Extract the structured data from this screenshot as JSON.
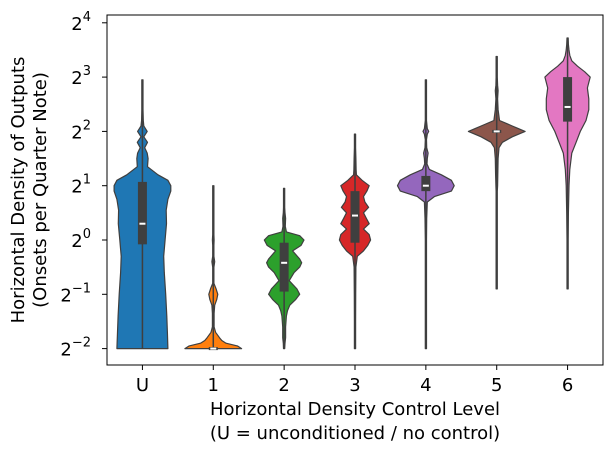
{
  "chart_data": {
    "type": "violin",
    "title": "",
    "xlabel_line1": "Horizontal Density Control Level",
    "xlabel_line2": "(U = unconditioned / no control)",
    "ylabel_line1": "Horizontal Density of Outputs",
    "ylabel_line2": "(Onsets per Quarter Note)",
    "yscale": "log2",
    "ylim_log2": [
      -2.3,
      4.2
    ],
    "y_ticks": [
      {
        "base": "2",
        "exp": "4",
        "log2": 4
      },
      {
        "base": "2",
        "exp": "3",
        "log2": 3
      },
      {
        "base": "2",
        "exp": "2",
        "log2": 2
      },
      {
        "base": "2",
        "exp": "1",
        "log2": 1
      },
      {
        "base": "2",
        "exp": "0",
        "log2": 0
      },
      {
        "base": "2",
        "exp": "−1",
        "log2": -1
      },
      {
        "base": "2",
        "exp": "−2",
        "log2": -2
      }
    ],
    "categories": [
      "U",
      "1",
      "2",
      "3",
      "4",
      "5",
      "6"
    ],
    "violins": [
      {
        "label": "U",
        "color": "#1f77b4",
        "median": 0.3,
        "q1": -0.08,
        "q3": 1.07,
        "wlo": -2.0,
        "whi": 2.95,
        "profile": [
          [
            -2.0,
            0.9
          ],
          [
            -1.7,
            0.88
          ],
          [
            -1.4,
            0.86
          ],
          [
            -1.0,
            0.82
          ],
          [
            -0.6,
            0.77
          ],
          [
            -0.3,
            0.75
          ],
          [
            0.0,
            0.8
          ],
          [
            0.3,
            0.85
          ],
          [
            0.55,
            0.84
          ],
          [
            0.75,
            0.9
          ],
          [
            0.9,
            1.0
          ],
          [
            1.0,
            1.0
          ],
          [
            1.1,
            0.9
          ],
          [
            1.2,
            0.55
          ],
          [
            1.35,
            0.18
          ],
          [
            1.5,
            0.2
          ],
          [
            1.6,
            0.17
          ],
          [
            1.7,
            0.08
          ],
          [
            1.8,
            0.18
          ],
          [
            1.9,
            0.05
          ],
          [
            2.0,
            0.17
          ],
          [
            2.1,
            0.05
          ],
          [
            2.2,
            0.03
          ],
          [
            2.4,
            0.02
          ],
          [
            2.7,
            0.01
          ],
          [
            2.95,
            0.005
          ]
        ]
      },
      {
        "label": "1",
        "color": "#ff7f0e",
        "median": -2.0,
        "q1": -2.0,
        "q3": -2.0,
        "wlo": -2.0,
        "whi": 1.0,
        "profile": [
          [
            -2.0,
            1.0
          ],
          [
            -1.95,
            0.85
          ],
          [
            -1.9,
            0.45
          ],
          [
            -1.85,
            0.3
          ],
          [
            -1.8,
            0.22
          ],
          [
            -1.7,
            0.08
          ],
          [
            -1.6,
            0.03
          ],
          [
            -1.5,
            0.03
          ],
          [
            -1.35,
            0.03
          ],
          [
            -1.2,
            0.05
          ],
          [
            -1.1,
            0.12
          ],
          [
            -1.0,
            0.16
          ],
          [
            -0.9,
            0.1
          ],
          [
            -0.8,
            0.02
          ],
          [
            -0.6,
            0.02
          ],
          [
            -0.5,
            0.02
          ],
          [
            -0.4,
            0.05
          ],
          [
            -0.3,
            0.02
          ],
          [
            -0.1,
            0.02
          ],
          [
            0.0,
            0.03
          ],
          [
            0.1,
            0.015
          ],
          [
            0.5,
            0.01
          ],
          [
            1.0,
            0.005
          ]
        ]
      },
      {
        "label": "2",
        "color": "#2ca02c",
        "median": -0.42,
        "q1": -0.95,
        "q3": -0.05,
        "wlo": -2.0,
        "whi": 0.95,
        "profile": [
          [
            -2.0,
            0.01
          ],
          [
            -1.9,
            0.03
          ],
          [
            -1.8,
            0.05
          ],
          [
            -1.6,
            0.05
          ],
          [
            -1.4,
            0.08
          ],
          [
            -1.3,
            0.12
          ],
          [
            -1.2,
            0.2
          ],
          [
            -1.1,
            0.4
          ],
          [
            -1.0,
            0.55
          ],
          [
            -0.9,
            0.45
          ],
          [
            -0.75,
            0.18
          ],
          [
            -0.6,
            0.35
          ],
          [
            -0.5,
            0.55
          ],
          [
            -0.42,
            0.62
          ],
          [
            -0.35,
            0.55
          ],
          [
            -0.2,
            0.3
          ],
          [
            -0.1,
            0.6
          ],
          [
            0.0,
            0.7
          ],
          [
            0.08,
            0.55
          ],
          [
            0.15,
            0.08
          ],
          [
            0.25,
            0.04
          ],
          [
            0.4,
            0.05
          ],
          [
            0.5,
            0.03
          ],
          [
            0.6,
            0.02
          ],
          [
            0.7,
            0.015
          ],
          [
            0.85,
            0.01
          ],
          [
            0.95,
            0.005
          ]
        ]
      },
      {
        "label": "3",
        "color": "#d62728",
        "median": 0.45,
        "q1": -0.05,
        "q3": 0.9,
        "wlo": -2.0,
        "whi": 1.95,
        "profile": [
          [
            -2.0,
            0.01
          ],
          [
            -1.5,
            0.02
          ],
          [
            -1.0,
            0.025
          ],
          [
            -0.5,
            0.03
          ],
          [
            -0.3,
            0.08
          ],
          [
            -0.2,
            0.3
          ],
          [
            -0.1,
            0.45
          ],
          [
            0.0,
            0.55
          ],
          [
            0.1,
            0.5
          ],
          [
            0.2,
            0.3
          ],
          [
            0.3,
            0.5
          ],
          [
            0.4,
            0.4
          ],
          [
            0.5,
            0.3
          ],
          [
            0.6,
            0.48
          ],
          [
            0.7,
            0.35
          ],
          [
            0.8,
            0.3
          ],
          [
            0.9,
            0.42
          ],
          [
            1.0,
            0.5
          ],
          [
            1.1,
            0.25
          ],
          [
            1.2,
            0.05
          ],
          [
            1.3,
            0.04
          ],
          [
            1.5,
            0.03
          ],
          [
            1.7,
            0.02
          ],
          [
            1.95,
            0.005
          ]
        ]
      },
      {
        "label": "4",
        "color": "#9467bd",
        "median": 1.0,
        "q1": 0.9,
        "q3": 1.18,
        "wlo": -2.0,
        "whi": 2.95,
        "profile": [
          [
            -2.0,
            0.005
          ],
          [
            -1.0,
            0.01
          ],
          [
            0.0,
            0.02
          ],
          [
            0.4,
            0.03
          ],
          [
            0.7,
            0.05
          ],
          [
            0.8,
            0.3
          ],
          [
            0.9,
            0.9
          ],
          [
            1.0,
            1.0
          ],
          [
            1.1,
            0.9
          ],
          [
            1.2,
            0.55
          ],
          [
            1.3,
            0.12
          ],
          [
            1.4,
            0.04
          ],
          [
            1.5,
            0.05
          ],
          [
            1.6,
            0.08
          ],
          [
            1.7,
            0.03
          ],
          [
            1.85,
            0.02
          ],
          [
            1.95,
            0.05
          ],
          [
            2.0,
            0.1
          ],
          [
            2.05,
            0.05
          ],
          [
            2.2,
            0.02
          ],
          [
            2.6,
            0.01
          ],
          [
            2.95,
            0.005
          ]
        ]
      },
      {
        "label": "5",
        "color": "#8c564b",
        "median": 2.0,
        "q1": 2.0,
        "q3": 2.0,
        "wlo": -0.9,
        "whi": 3.38,
        "profile": [
          [
            -0.9,
            0.005
          ],
          [
            0.0,
            0.01
          ],
          [
            0.7,
            0.015
          ],
          [
            0.9,
            0.02
          ],
          [
            1.0,
            0.03
          ],
          [
            1.2,
            0.04
          ],
          [
            1.5,
            0.05
          ],
          [
            1.7,
            0.08
          ],
          [
            1.8,
            0.2
          ],
          [
            1.9,
            0.55
          ],
          [
            2.0,
            1.0
          ],
          [
            2.1,
            0.55
          ],
          [
            2.2,
            0.1
          ],
          [
            2.4,
            0.05
          ],
          [
            2.6,
            0.03
          ],
          [
            2.75,
            0.05
          ],
          [
            2.85,
            0.03
          ],
          [
            3.0,
            0.02
          ],
          [
            3.2,
            0.01
          ],
          [
            3.38,
            0.005
          ]
        ]
      },
      {
        "label": "6",
        "color": "#e377c2",
        "median": 2.45,
        "q1": 2.18,
        "q3": 3.0,
        "wlo": -0.9,
        "whi": 3.72,
        "profile": [
          [
            -0.9,
            0.005
          ],
          [
            -0.5,
            0.01
          ],
          [
            0.0,
            0.02
          ],
          [
            0.5,
            0.03
          ],
          [
            1.0,
            0.05
          ],
          [
            1.3,
            0.08
          ],
          [
            1.6,
            0.15
          ],
          [
            1.8,
            0.3
          ],
          [
            2.0,
            0.45
          ],
          [
            2.2,
            0.65
          ],
          [
            2.4,
            0.75
          ],
          [
            2.6,
            0.75
          ],
          [
            2.8,
            0.7
          ],
          [
            2.9,
            0.75
          ],
          [
            3.0,
            0.8
          ],
          [
            3.1,
            0.6
          ],
          [
            3.2,
            0.35
          ],
          [
            3.3,
            0.15
          ],
          [
            3.4,
            0.08
          ],
          [
            3.5,
            0.05
          ],
          [
            3.6,
            0.03
          ],
          [
            3.72,
            0.005
          ]
        ]
      }
    ]
  }
}
